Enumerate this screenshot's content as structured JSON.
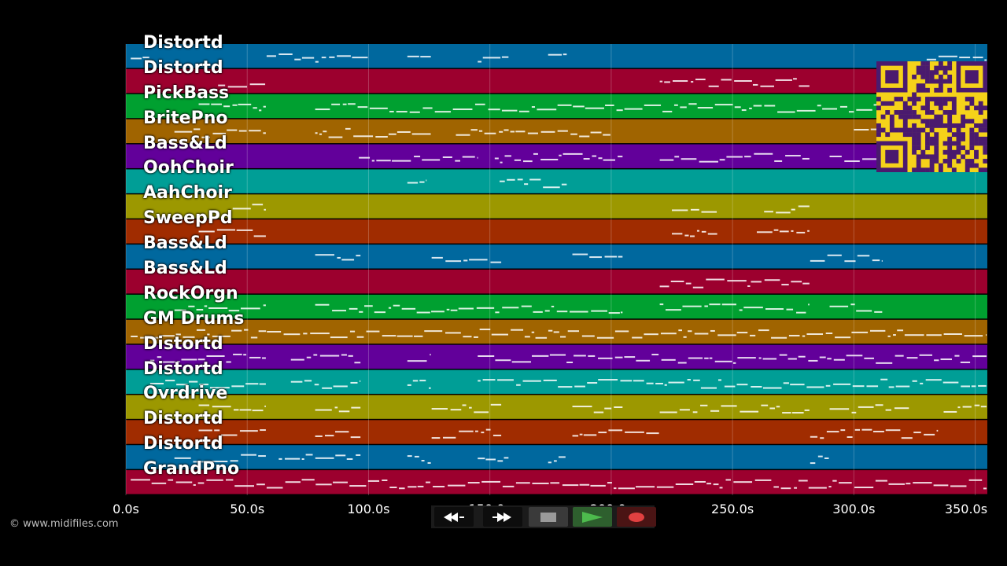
{
  "tracks": [
    {
      "name": "Distortd",
      "color": "#00689e"
    },
    {
      "name": "Distortd",
      "color": "#9c002e"
    },
    {
      "name": "PickBass",
      "color": "#00a030"
    },
    {
      "name": "BritePno",
      "color": "#a06400"
    },
    {
      "name": "Bass&Ld",
      "color": "#62009a"
    },
    {
      "name": "OohChoir",
      "color": "#009e96"
    },
    {
      "name": "AahChoir",
      "color": "#9c9800"
    },
    {
      "name": "SweepPd",
      "color": "#a02c00"
    },
    {
      "name": "Bass&Ld",
      "color": "#00689e"
    },
    {
      "name": "Bass&Ld",
      "color": "#9c002e"
    },
    {
      "name": "RockOrgn",
      "color": "#00a030"
    },
    {
      "name": "GM Drums",
      "color": "#a06400"
    },
    {
      "name": "Distortd",
      "color": "#62009a"
    },
    {
      "name": "Distortd",
      "color": "#009e96"
    },
    {
      "name": "Ovrdrive",
      "color": "#9c9800"
    },
    {
      "name": "Distortd",
      "color": "#a02c00"
    },
    {
      "name": "Distortd",
      "color": "#00689e"
    },
    {
      "name": "GrandPno",
      "color": "#9c002e"
    }
  ],
  "time_axis": {
    "min_s": 0,
    "max_s": 355,
    "ticks": [
      {
        "value": 0,
        "label": "0.0s"
      },
      {
        "value": 50,
        "label": "50.0s"
      },
      {
        "value": 100,
        "label": "100.0s"
      },
      {
        "value": 150,
        "label": "150.0s"
      },
      {
        "value": 200,
        "label": "200.0s"
      },
      {
        "value": 250,
        "label": "250.0s"
      },
      {
        "value": 300,
        "label": "300.0s"
      },
      {
        "value": 350,
        "label": "350.0s"
      }
    ]
  },
  "copyright": "© www.midifiles.com",
  "transport": {
    "rewind_icon": "rewind-icon",
    "fast_forward_icon": "fast-forward-icon",
    "stop_icon": "stop-icon",
    "play_icon": "play-icon",
    "record_icon": "record-icon"
  },
  "qr_code": {
    "icon": "qr-code-icon",
    "color": "#f5d21a",
    "dark": "#4a1a6e"
  },
  "notes": [
    {
      "track": 0,
      "start": 2,
      "end": 12
    },
    {
      "track": 0,
      "start": 58,
      "end": 100
    },
    {
      "track": 0,
      "start": 116,
      "end": 126
    },
    {
      "track": 0,
      "start": 145,
      "end": 158
    },
    {
      "track": 0,
      "start": 174,
      "end": 182
    },
    {
      "track": 0,
      "start": 330,
      "end": 355
    },
    {
      "track": 1,
      "start": 38,
      "end": 58
    },
    {
      "track": 1,
      "start": 220,
      "end": 282
    },
    {
      "track": 2,
      "start": 30,
      "end": 58
    },
    {
      "track": 2,
      "start": 78,
      "end": 355
    },
    {
      "track": 3,
      "start": 20,
      "end": 58
    },
    {
      "track": 3,
      "start": 78,
      "end": 126
    },
    {
      "track": 3,
      "start": 136,
      "end": 200
    },
    {
      "track": 3,
      "start": 300,
      "end": 318
    },
    {
      "track": 4,
      "start": 96,
      "end": 145
    },
    {
      "track": 4,
      "start": 152,
      "end": 205
    },
    {
      "track": 4,
      "start": 220,
      "end": 282
    },
    {
      "track": 4,
      "start": 290,
      "end": 310
    },
    {
      "track": 5,
      "start": 116,
      "end": 124
    },
    {
      "track": 5,
      "start": 154,
      "end": 182
    },
    {
      "track": 6,
      "start": 44,
      "end": 58
    },
    {
      "track": 6,
      "start": 225,
      "end": 244
    },
    {
      "track": 6,
      "start": 263,
      "end": 282
    },
    {
      "track": 7,
      "start": 30,
      "end": 58
    },
    {
      "track": 7,
      "start": 225,
      "end": 244
    },
    {
      "track": 7,
      "start": 260,
      "end": 282
    },
    {
      "track": 8,
      "start": 78,
      "end": 97
    },
    {
      "track": 8,
      "start": 126,
      "end": 155
    },
    {
      "track": 8,
      "start": 184,
      "end": 205
    },
    {
      "track": 8,
      "start": 282,
      "end": 312
    },
    {
      "track": 9,
      "start": 220,
      "end": 282
    },
    {
      "track": 10,
      "start": 20,
      "end": 58
    },
    {
      "track": 10,
      "start": 78,
      "end": 205
    },
    {
      "track": 10,
      "start": 220,
      "end": 282
    },
    {
      "track": 10,
      "start": 290,
      "end": 312
    },
    {
      "track": 11,
      "start": 2,
      "end": 355
    },
    {
      "track": 12,
      "start": 10,
      "end": 58
    },
    {
      "track": 12,
      "start": 68,
      "end": 97
    },
    {
      "track": 12,
      "start": 116,
      "end": 126
    },
    {
      "track": 12,
      "start": 145,
      "end": 355
    },
    {
      "track": 13,
      "start": 10,
      "end": 58
    },
    {
      "track": 13,
      "start": 68,
      "end": 97
    },
    {
      "track": 13,
      "start": 116,
      "end": 126
    },
    {
      "track": 13,
      "start": 145,
      "end": 355
    },
    {
      "track": 14,
      "start": 30,
      "end": 58
    },
    {
      "track": 14,
      "start": 78,
      "end": 97
    },
    {
      "track": 14,
      "start": 126,
      "end": 155
    },
    {
      "track": 14,
      "start": 184,
      "end": 205
    },
    {
      "track": 14,
      "start": 220,
      "end": 282
    },
    {
      "track": 14,
      "start": 290,
      "end": 323
    },
    {
      "track": 14,
      "start": 337,
      "end": 355
    },
    {
      "track": 15,
      "start": 30,
      "end": 58
    },
    {
      "track": 15,
      "start": 78,
      "end": 97
    },
    {
      "track": 15,
      "start": 126,
      "end": 155
    },
    {
      "track": 15,
      "start": 184,
      "end": 220
    },
    {
      "track": 15,
      "start": 282,
      "end": 335
    },
    {
      "track": 16,
      "start": 20,
      "end": 58
    },
    {
      "track": 16,
      "start": 63,
      "end": 97
    },
    {
      "track": 16,
      "start": 116,
      "end": 126
    },
    {
      "track": 16,
      "start": 145,
      "end": 158
    },
    {
      "track": 16,
      "start": 174,
      "end": 182
    },
    {
      "track": 16,
      "start": 282,
      "end": 290
    },
    {
      "track": 17,
      "start": 2,
      "end": 355
    }
  ]
}
